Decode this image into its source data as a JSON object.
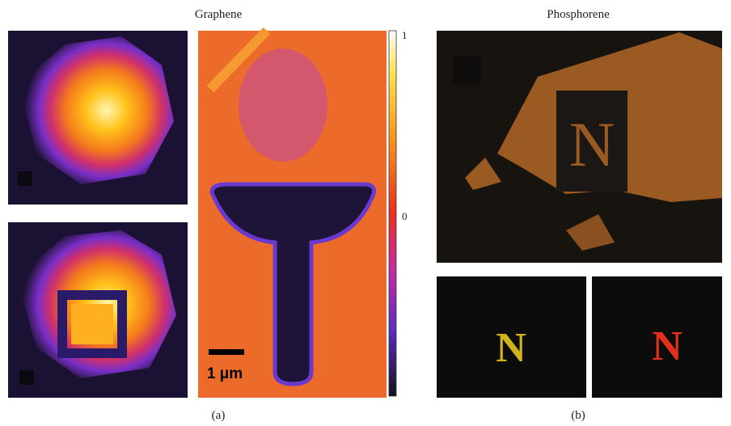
{
  "panels": {
    "graphene": {
      "title": "Graphene",
      "colorbar_labels": [
        "1",
        "0"
      ],
      "scale_bar": "1 μm",
      "caption": "(a)"
    },
    "phosphorene": {
      "title": "Phosphorene",
      "image_labels": [
        "N",
        "N",
        "N"
      ],
      "caption": "(b)"
    }
  }
}
